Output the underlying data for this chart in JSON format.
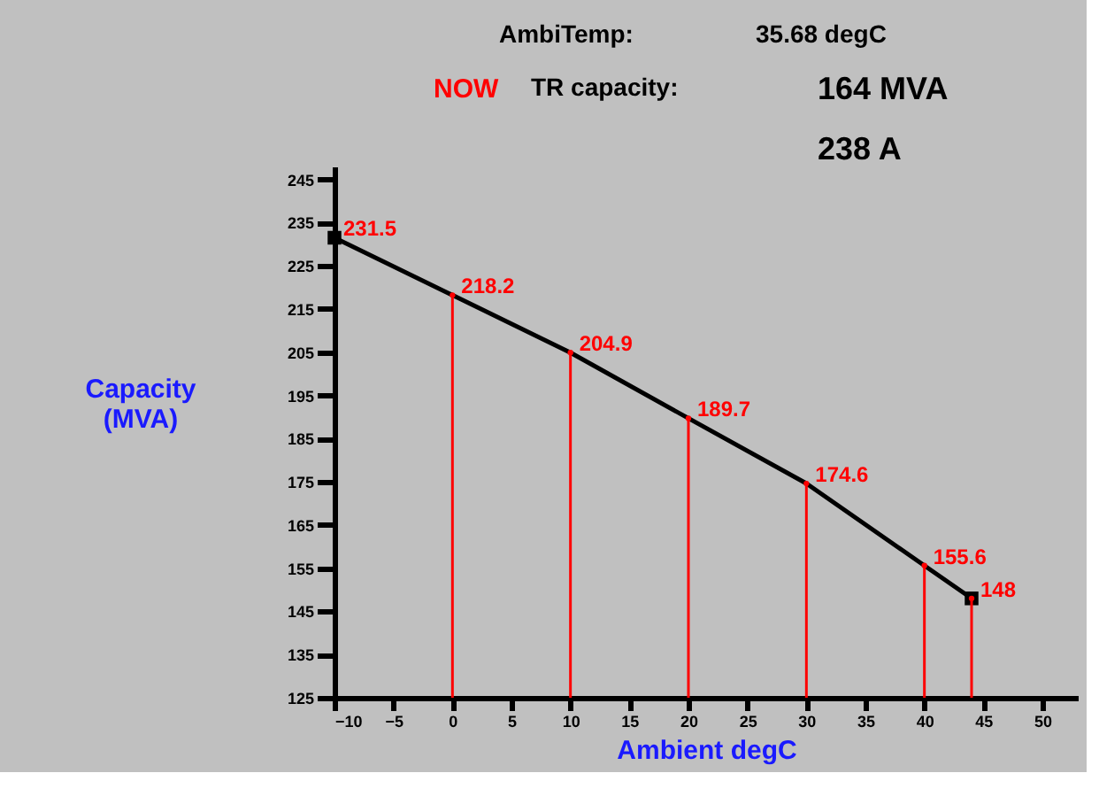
{
  "chart_data": {
    "type": "line",
    "xlabel": "Ambient degC",
    "ylabel": "Capacity (MVA)",
    "annotations": [
      "AmbiTemp:",
      "35.68 degC",
      "NOW",
      "TR capacity:",
      "164 MVA",
      "238 A"
    ],
    "series": [
      {
        "color": "#000000",
        "marker": "none",
        "x": [
          -10,
          0,
          10,
          20,
          30,
          40,
          44
        ],
        "values": [
          231.5,
          218.2,
          204.9,
          189.7,
          174.6,
          155.6,
          148
        ],
        "data_labels": true
      },
      {
        "type": "scatter",
        "color": "#000000",
        "marker": "square",
        "x": [
          -10,
          44
        ],
        "values": [
          231.5,
          148
        ]
      },
      {
        "type": "lollipop",
        "color": "#ff0000",
        "x": [
          0,
          10,
          20,
          30,
          40,
          44
        ],
        "values": [
          218.2,
          204.9,
          189.7,
          174.6,
          155.6,
          148
        ]
      }
    ],
    "xlim": [
      -10,
      53
    ],
    "xticks": [
      -10,
      -5,
      0,
      5,
      10,
      15,
      20,
      25,
      30,
      35,
      40,
      45,
      50
    ],
    "ylim": [
      125,
      248
    ],
    "yticks": [
      125,
      135,
      145,
      155,
      165,
      175,
      185,
      195,
      205,
      215,
      225,
      235,
      245
    ],
    "grid": false
  }
}
